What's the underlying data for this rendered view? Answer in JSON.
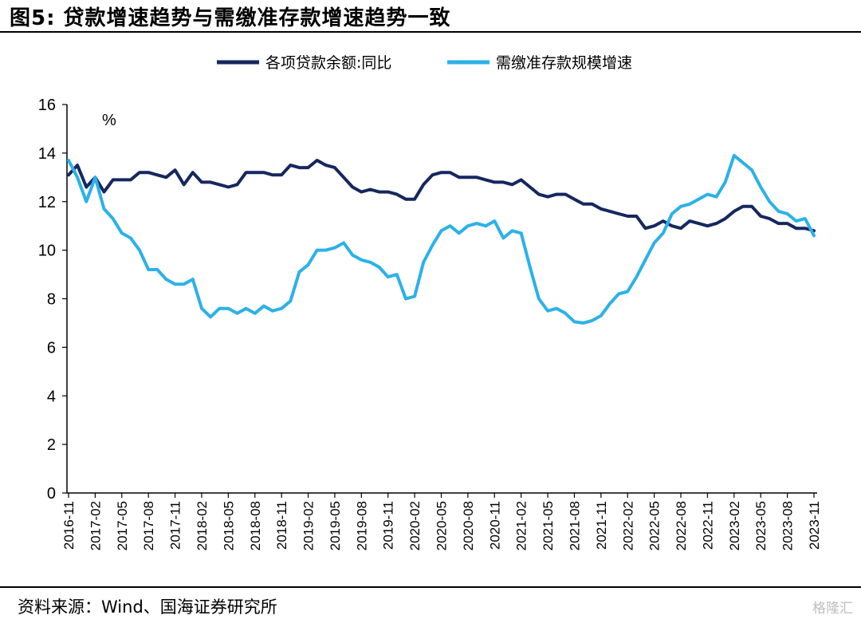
{
  "figure": {
    "title": "图5:  贷款增速趋势与需缴准存款增速趋势一致",
    "source": "资料来源：Wind、国海证券研究所",
    "watermark": "格隆汇"
  },
  "chart_data": {
    "type": "line",
    "unit_label": "%",
    "ylim": [
      0,
      16
    ],
    "yticks": [
      0,
      2,
      4,
      6,
      8,
      10,
      12,
      14,
      16
    ],
    "x_start": "2016-11",
    "x_end": "2023-11",
    "xtick_labels": [
      "2016-11",
      "2017-02",
      "2017-05",
      "2017-08",
      "2017-11",
      "2018-02",
      "2018-05",
      "2018-08",
      "2018-11",
      "2019-02",
      "2019-05",
      "2019-08",
      "2019-11",
      "2020-02",
      "2020-05",
      "2020-08",
      "2020-11",
      "2021-02",
      "2021-05",
      "2021-08",
      "2021-11",
      "2022-02",
      "2022-05",
      "2022-08",
      "2022-11",
      "2023-02",
      "2023-05",
      "2023-08",
      "2023-11"
    ],
    "legend_position": "top-center",
    "grid": false,
    "series": [
      {
        "name": "各项贷款余额:同比",
        "color": "#16275f",
        "values": [
          13.1,
          13.5,
          12.6,
          13.0,
          12.4,
          12.9,
          12.9,
          12.9,
          13.2,
          13.2,
          13.1,
          13.0,
          13.3,
          12.7,
          13.2,
          12.8,
          12.8,
          12.7,
          12.6,
          12.7,
          13.2,
          13.2,
          13.2,
          13.1,
          13.1,
          13.5,
          13.4,
          13.4,
          13.7,
          13.5,
          13.4,
          13.0,
          12.6,
          12.4,
          12.5,
          12.4,
          12.4,
          12.3,
          12.1,
          12.1,
          12.7,
          13.1,
          13.2,
          13.2,
          13.0,
          13.0,
          13.0,
          12.9,
          12.8,
          12.8,
          12.7,
          12.9,
          12.6,
          12.3,
          12.2,
          12.3,
          12.3,
          12.1,
          11.9,
          11.9,
          11.7,
          11.6,
          11.5,
          11.4,
          11.4,
          10.9,
          11.0,
          11.2,
          11.0,
          10.9,
          11.2,
          11.1,
          11.0,
          11.1,
          11.3,
          11.6,
          11.8,
          11.8,
          11.4,
          11.3,
          11.1,
          11.1,
          10.9,
          10.9,
          10.8
        ]
      },
      {
        "name": "需缴准存款规模增速",
        "color": "#2cb1e8",
        "values": [
          13.7,
          13.0,
          12.0,
          13.0,
          11.7,
          11.3,
          10.7,
          10.5,
          10.0,
          9.2,
          9.2,
          8.8,
          8.6,
          8.6,
          8.8,
          7.6,
          7.25,
          7.6,
          7.6,
          7.4,
          7.6,
          7.4,
          7.7,
          7.5,
          7.6,
          7.9,
          9.1,
          9.4,
          10.0,
          10.0,
          10.1,
          10.3,
          9.8,
          9.6,
          9.5,
          9.3,
          8.9,
          9.0,
          8.0,
          8.1,
          9.5,
          10.2,
          10.8,
          11.0,
          10.7,
          11.0,
          11.1,
          11.0,
          11.2,
          10.5,
          10.8,
          10.7,
          9.3,
          8.0,
          7.5,
          7.6,
          7.4,
          7.05,
          7.0,
          7.1,
          7.3,
          7.8,
          8.2,
          8.3,
          8.9,
          9.6,
          10.3,
          10.7,
          11.5,
          11.8,
          11.9,
          12.1,
          12.3,
          12.2,
          12.8,
          13.9,
          13.6,
          13.3,
          12.6,
          12.0,
          11.6,
          11.5,
          11.2,
          11.3,
          10.6
        ]
      }
    ]
  }
}
